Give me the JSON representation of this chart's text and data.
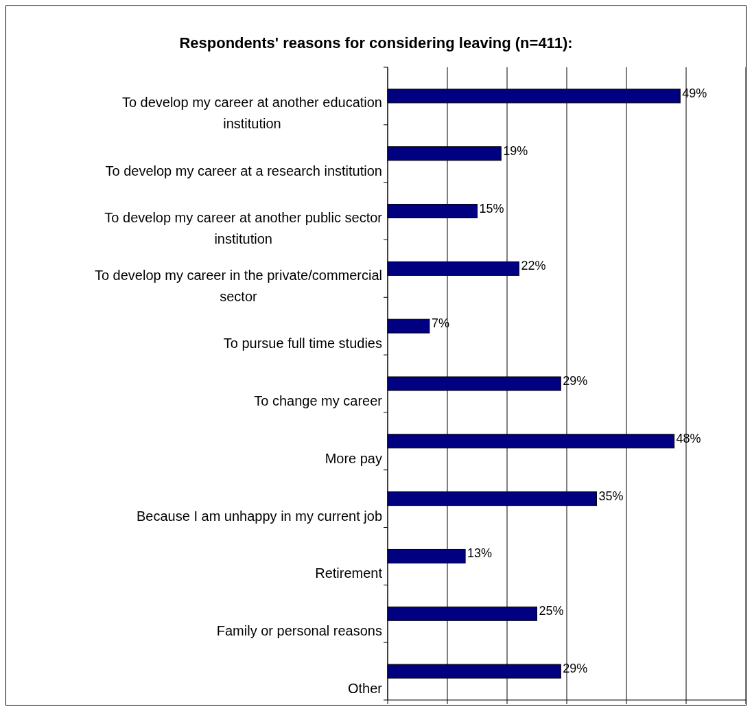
{
  "chart_data": {
    "type": "bar",
    "orientation": "horizontal",
    "title": "Respondents' reasons for considering leaving (n=411):",
    "categories": [
      "To develop my career at another education institution",
      "To develop my career at a research institution",
      "To develop my career at another public sector institution",
      "To develop my career in the private/commercial sector",
      "To pursue full time studies",
      "To change my career",
      "More pay",
      "Because I am unhappy in my current job",
      "Retirement",
      "Family or personal reasons",
      "Other"
    ],
    "values": [
      49,
      19,
      15,
      22,
      7,
      29,
      48,
      35,
      13,
      25,
      29
    ],
    "value_labels": [
      "49%",
      "19%",
      "15%",
      "22%",
      "7%",
      "29%",
      "48%",
      "35%",
      "13%",
      "25%",
      "29%"
    ],
    "color": "#000080",
    "xlim": [
      0,
      60
    ],
    "xticks": [
      {
        "value": 0,
        "label": null
      },
      {
        "value": 10,
        "label": null
      },
      {
        "value": 20,
        "label": null
      },
      {
        "value": 30,
        "label": null
      },
      {
        "value": 40,
        "label": null
      },
      {
        "value": 50,
        "label": null
      },
      {
        "value": 60,
        "label": null
      }
    ],
    "tick_labels": "y",
    "grid": "x"
  }
}
